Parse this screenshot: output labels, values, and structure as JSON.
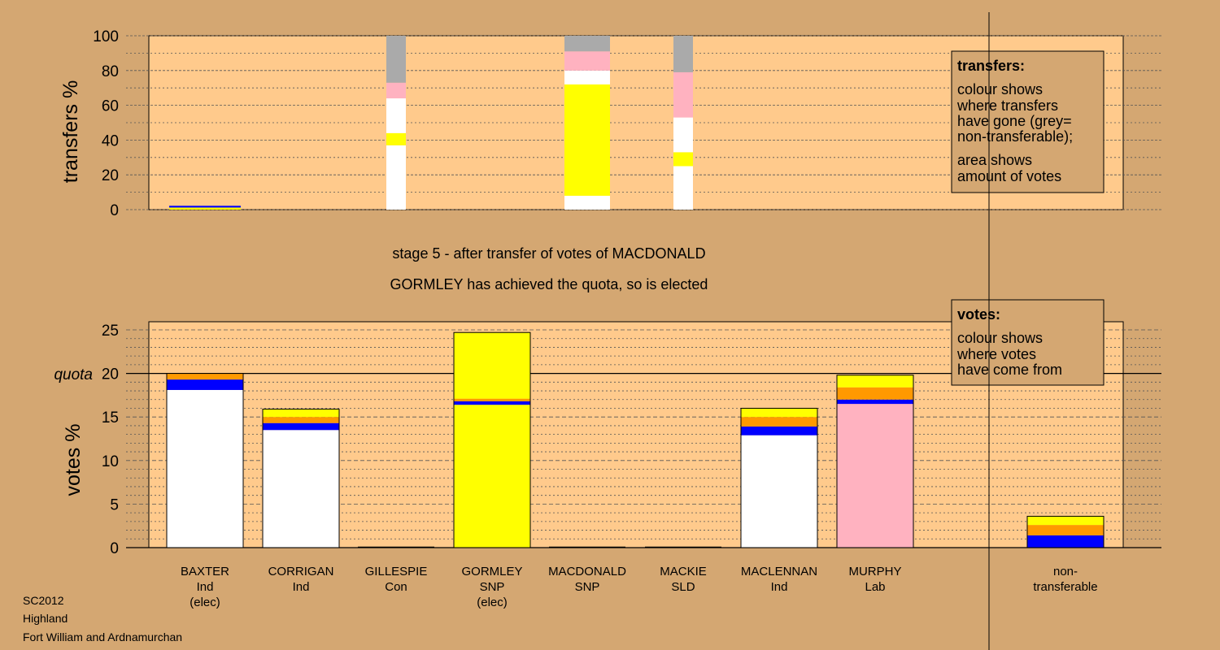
{
  "title_lines": [
    "stage 5 - after transfer of votes of MACDONALD",
    "GORMLEY has achieved the quota, so is elected"
  ],
  "footer_lines": [
    "SC2012",
    "Highland",
    "Fort William and Ardnamurchan"
  ],
  "colors": {
    "panel": "#ffca8c",
    "background": "#d4a772",
    "Ind": "#ffffff",
    "SNP": "#ffff00",
    "Lab": "#ffb2c0",
    "Con": "#0000ff",
    "SLD": "#ff9900",
    "nontransferable": "#aaaaaa"
  },
  "chart_data": [
    {
      "type": "bar",
      "stacked": true,
      "ylabel": "transfers %",
      "ylim": [
        0,
        100
      ],
      "yticks": [
        0,
        20,
        40,
        60,
        80,
        100
      ],
      "grid": true,
      "categories": [
        "BAXTER",
        "CORRIGAN",
        "GILLESPIE",
        "GORMLEY",
        "MACDONALD",
        "MACKIE",
        "MACLENNAN",
        "MURPHY",
        "non-transferable"
      ],
      "bars": [
        {
          "category": "BAXTER",
          "segments": [
            {
              "party": "SNP",
              "from": 0,
              "to": 1.2
            },
            {
              "party": "Con",
              "from": 1.2,
              "to": 2.2
            }
          ]
        },
        {
          "category": "GILLESPIE",
          "segments": [
            {
              "party": "Ind",
              "from": 0,
              "to": 37
            },
            {
              "party": "SNP",
              "from": 37,
              "to": 44
            },
            {
              "party": "Ind",
              "from": 44,
              "to": 64
            },
            {
              "party": "Lab",
              "from": 64,
              "to": 73
            },
            {
              "party": "nontransferable",
              "from": 73,
              "to": 100
            }
          ]
        },
        {
          "category": "MACDONALD",
          "segments": [
            {
              "party": "Ind",
              "from": 0,
              "to": 8
            },
            {
              "party": "SNP",
              "from": 8,
              "to": 72
            },
            {
              "party": "Ind",
              "from": 72,
              "to": 80
            },
            {
              "party": "Lab",
              "from": 80,
              "to": 91
            },
            {
              "party": "nontransferable",
              "from": 91,
              "to": 100
            }
          ]
        },
        {
          "category": "MACKIE",
          "segments": [
            {
              "party": "Ind",
              "from": 0,
              "to": 25
            },
            {
              "party": "SNP",
              "from": 25,
              "to": 33
            },
            {
              "party": "Ind",
              "from": 33,
              "to": 53
            },
            {
              "party": "Lab",
              "from": 53,
              "to": 79
            },
            {
              "party": "nontransferable",
              "from": 79,
              "to": 100
            }
          ]
        }
      ],
      "legend": {
        "heading": "transfers:",
        "paragraphs": [
          [
            "colour shows",
            "where transfers",
            "have gone (grey=",
            "non-transferable);"
          ],
          [
            "area shows",
            "amount of votes"
          ]
        ]
      }
    },
    {
      "type": "bar",
      "stacked": true,
      "ylabel": "votes %",
      "ylim": [
        0,
        25
      ],
      "yticks": [
        0,
        5,
        10,
        15,
        20,
        25
      ],
      "grid": true,
      "quota": {
        "label": "quota",
        "value": 20
      },
      "categories": [
        "BAXTER",
        "CORRIGAN",
        "GILLESPIE",
        "GORMLEY",
        "MACDONALD",
        "MACKIE",
        "MACLENNAN",
        "MURPHY",
        "non-transferable"
      ],
      "labels": [
        [
          "BAXTER",
          "Ind",
          "(elec)"
        ],
        [
          "CORRIGAN",
          "Ind"
        ],
        [
          "GILLESPIE",
          "Con"
        ],
        [
          "GORMLEY",
          "SNP",
          "(elec)"
        ],
        [
          "MACDONALD",
          "SNP"
        ],
        [
          "MACKIE",
          "SLD"
        ],
        [
          "MACLENNAN",
          "Ind"
        ],
        [
          "MURPHY",
          "Lab"
        ],
        [
          "non-",
          "transferable"
        ]
      ],
      "bars": [
        {
          "category": "BAXTER",
          "segments": [
            {
              "party": "Ind",
              "from": 0,
              "to": 18.1
            },
            {
              "party": "Con",
              "from": 18.1,
              "to": 19.3
            },
            {
              "party": "SLD",
              "from": 19.3,
              "to": 20.0
            }
          ]
        },
        {
          "category": "CORRIGAN",
          "segments": [
            {
              "party": "Ind",
              "from": 0,
              "to": 13.5
            },
            {
              "party": "Con",
              "from": 13.5,
              "to": 14.3
            },
            {
              "party": "SLD",
              "from": 14.3,
              "to": 15.0
            },
            {
              "party": "SNP",
              "from": 15.0,
              "to": 15.9
            }
          ]
        },
        {
          "category": "GILLESPIE",
          "segments": []
        },
        {
          "category": "GORMLEY",
          "segments": [
            {
              "party": "SNP",
              "from": 0,
              "to": 16.4
            },
            {
              "party": "Con",
              "from": 16.4,
              "to": 16.8
            },
            {
              "party": "SLD",
              "from": 16.8,
              "to": 17.1
            },
            {
              "party": "SNP",
              "from": 17.1,
              "to": 24.7
            }
          ]
        },
        {
          "category": "MACDONALD",
          "segments": []
        },
        {
          "category": "MACKIE",
          "segments": []
        },
        {
          "category": "MACLENNAN",
          "segments": [
            {
              "party": "Ind",
              "from": 0,
              "to": 12.9
            },
            {
              "party": "Con",
              "from": 12.9,
              "to": 13.9
            },
            {
              "party": "SLD",
              "from": 13.9,
              "to": 15.0
            },
            {
              "party": "SNP",
              "from": 15.0,
              "to": 16.0
            }
          ]
        },
        {
          "category": "MURPHY",
          "segments": [
            {
              "party": "Lab",
              "from": 0,
              "to": 16.5
            },
            {
              "party": "Con",
              "from": 16.5,
              "to": 17.0
            },
            {
              "party": "SLD",
              "from": 17.0,
              "to": 18.4
            },
            {
              "party": "SNP",
              "from": 18.4,
              "to": 19.8
            }
          ]
        },
        {
          "category": "non-transferable",
          "segments": [
            {
              "party": "Con",
              "from": 0,
              "to": 1.4
            },
            {
              "party": "SLD",
              "from": 1.4,
              "to": 2.6
            },
            {
              "party": "SNP",
              "from": 2.6,
              "to": 3.6
            }
          ]
        }
      ],
      "legend": {
        "heading": "votes:",
        "paragraphs": [
          [
            "colour shows",
            "where votes",
            "have come from"
          ]
        ]
      }
    }
  ]
}
